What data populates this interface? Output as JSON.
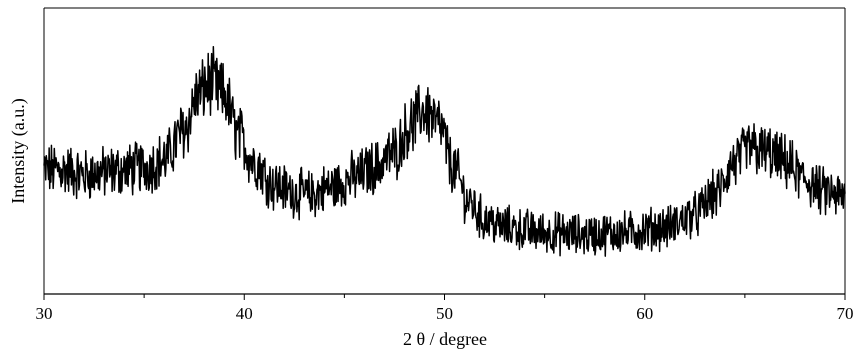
{
  "chart_data": {
    "type": "line",
    "title": "",
    "xlabel": "2 θ / degree",
    "ylabel": "Intensity (a.u.)",
    "xlim": [
      30,
      70
    ],
    "ylim": [
      0,
      100
    ],
    "x_ticks": [
      30,
      40,
      50,
      60,
      70
    ],
    "x_minor_ticks": [
      35,
      45,
      55,
      65
    ],
    "y_ticks_shown": false,
    "grid": false,
    "line_color": "#000000",
    "peaks": [
      {
        "x": 38.3,
        "approx_intensity": 78
      },
      {
        "x": 49.0,
        "approx_intensity": 68
      },
      {
        "x": 65.3,
        "approx_intensity": 52
      }
    ],
    "envelope": [
      {
        "x": 30.0,
        "y": 40
      },
      {
        "x": 31.0,
        "y": 40
      },
      {
        "x": 32.0,
        "y": 38
      },
      {
        "x": 33.0,
        "y": 39
      },
      {
        "x": 34.0,
        "y": 40
      },
      {
        "x": 35.0,
        "y": 41
      },
      {
        "x": 36.0,
        "y": 44
      },
      {
        "x": 37.0,
        "y": 56
      },
      {
        "x": 37.7,
        "y": 70
      },
      {
        "x": 38.3,
        "y": 75
      },
      {
        "x": 39.0,
        "y": 70
      },
      {
        "x": 39.7,
        "y": 54
      },
      {
        "x": 40.5,
        "y": 43
      },
      {
        "x": 41.5,
        "y": 34
      },
      {
        "x": 42.5,
        "y": 31
      },
      {
        "x": 43.3,
        "y": 30
      },
      {
        "x": 44.3,
        "y": 33
      },
      {
        "x": 45.5,
        "y": 37
      },
      {
        "x": 46.5,
        "y": 41
      },
      {
        "x": 47.5,
        "y": 47
      },
      {
        "x": 48.3,
        "y": 58
      },
      {
        "x": 49.0,
        "y": 64
      },
      {
        "x": 49.7,
        "y": 58
      },
      {
        "x": 50.5,
        "y": 40
      },
      {
        "x": 51.2,
        "y": 27
      },
      {
        "x": 52.0,
        "y": 20
      },
      {
        "x": 53.0,
        "y": 17
      },
      {
        "x": 55.0,
        "y": 15
      },
      {
        "x": 57.0,
        "y": 14
      },
      {
        "x": 59.0,
        "y": 15
      },
      {
        "x": 61.0,
        "y": 17
      },
      {
        "x": 62.5,
        "y": 22
      },
      {
        "x": 63.5,
        "y": 30
      },
      {
        "x": 64.5,
        "y": 43
      },
      {
        "x": 65.3,
        "y": 49
      },
      {
        "x": 66.0,
        "y": 47
      },
      {
        "x": 67.0,
        "y": 43
      },
      {
        "x": 68.0,
        "y": 36
      },
      {
        "x": 69.0,
        "y": 31
      },
      {
        "x": 70.0,
        "y": 29
      }
    ],
    "noise_amplitude": 9,
    "sample_count": 1400
  }
}
